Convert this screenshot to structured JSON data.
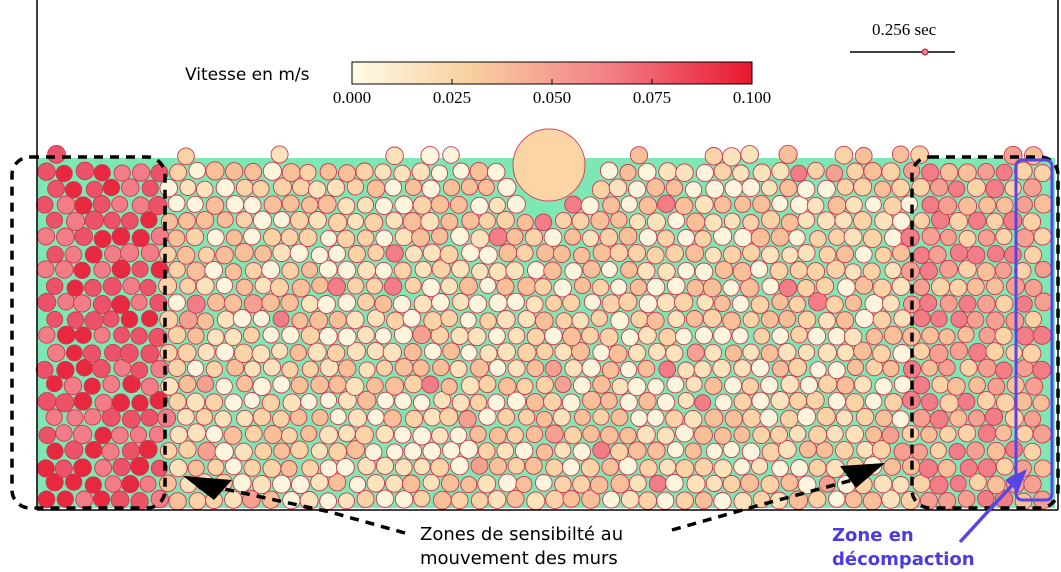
{
  "colorbar": {
    "label": "Vitesse en m/s",
    "range": [
      0,
      0.1
    ],
    "ticks": [
      {
        "value": 0,
        "label": "0.000"
      },
      {
        "value": 0.025,
        "label": "0.025"
      },
      {
        "value": 0.05,
        "label": "0.050"
      },
      {
        "value": 0.075,
        "label": "0.075"
      },
      {
        "value": 0.1,
        "label": "0.100"
      }
    ]
  },
  "time_label": "0.256 sec",
  "annotations": {
    "walls": [
      "Zones  de sensibilté au",
      "mouvement des murs"
    ],
    "decompaction": [
      "Zone en",
      "décompaction"
    ]
  }
}
